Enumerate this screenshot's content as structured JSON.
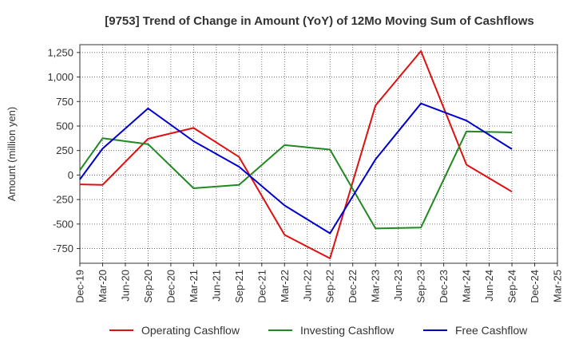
{
  "chart_data": {
    "type": "line",
    "title": "[9753]  Trend of Change in Amount (YoY) of 12Mo Moving Sum of Cashflows",
    "xlabel": "",
    "ylabel": "Amount (million yen)",
    "ylim": [
      -900,
      1330
    ],
    "yticks": [
      1250,
      1000,
      750,
      500,
      250,
      0,
      -250,
      -500,
      -750
    ],
    "ytick_labels": [
      "1,250",
      "1,000",
      "750",
      "500",
      "250",
      "0",
      "-250",
      "-500",
      "-750"
    ],
    "categories": [
      "Dec-19",
      "Mar-20",
      "Jun-20",
      "Sep-20",
      "Dec-20",
      "Mar-21",
      "Jun-21",
      "Sep-21",
      "Dec-21",
      "Mar-22",
      "Jun-22",
      "Sep-22",
      "Dec-22",
      "Mar-23",
      "Jun-23",
      "Sep-23",
      "Dec-23",
      "Mar-24",
      "Jun-24",
      "Sep-24",
      "Dec-24",
      "Mar-25"
    ],
    "grid": true,
    "legend_position": "bottom",
    "series": [
      {
        "name": "Operating Cashflow",
        "color": "#dd1111",
        "values": [
          -95,
          -100,
          null,
          370,
          null,
          480,
          null,
          185,
          null,
          -610,
          null,
          -850,
          null,
          710,
          null,
          1265,
          null,
          105,
          null,
          -170,
          null,
          null
        ]
      },
      {
        "name": "Investing Cashflow",
        "color": "#228822",
        "values": [
          50,
          375,
          null,
          315,
          null,
          -135,
          null,
          -100,
          null,
          305,
          null,
          260,
          null,
          -545,
          null,
          -535,
          null,
          445,
          null,
          435,
          null,
          null
        ]
      },
      {
        "name": "Free Cashflow",
        "color": "#0000cc",
        "values": [
          -45,
          270,
          null,
          680,
          null,
          345,
          null,
          85,
          null,
          -310,
          null,
          -595,
          null,
          160,
          null,
          730,
          null,
          555,
          null,
          265,
          null,
          null
        ]
      }
    ]
  }
}
